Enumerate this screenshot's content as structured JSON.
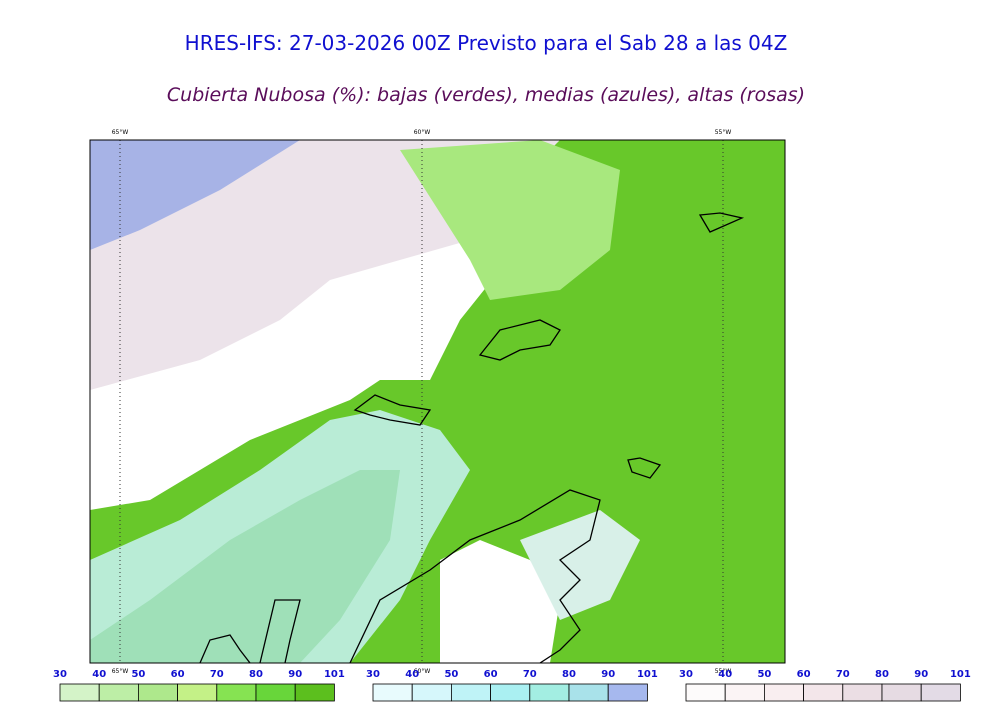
{
  "header": {
    "title": "HRES-IFS: 27-03-2026 00Z Previsto para el Sab 28 a las 04Z",
    "subtitle": "Cubierta Nubosa (%): bajas (verdes), medias (azules), altas (rosas)"
  },
  "map": {
    "lon_labels": [
      "65°W",
      "60°W",
      "55°W"
    ]
  },
  "legends": [
    {
      "labels": [
        "30",
        "40",
        "50",
        "60",
        "70",
        "80",
        "90",
        "101"
      ],
      "colors": [
        "#d4f3c8",
        "#bdeea6",
        "#aee88c",
        "#c4f187",
        "#86e352",
        "#68d63a",
        "#5cbf1e"
      ]
    },
    {
      "labels": [
        "30",
        "40",
        "50",
        "60",
        "70",
        "80",
        "90",
        "101"
      ],
      "colors": [
        "#e8fbfd",
        "#d6f7fb",
        "#bff3f7",
        "#aaf0f2",
        "#a3eee2",
        "#a9e2ea",
        "#a6b8ee"
      ]
    },
    {
      "labels": [
        "30",
        "40",
        "50",
        "60",
        "70",
        "80",
        "90",
        "101"
      ],
      "colors": [
        "#fdfbfb",
        "#fbf4f5",
        "#f9eef0",
        "#f3e6ea",
        "#ebdee4",
        "#e6dbe3",
        "#e3dbe6"
      ]
    }
  ]
}
